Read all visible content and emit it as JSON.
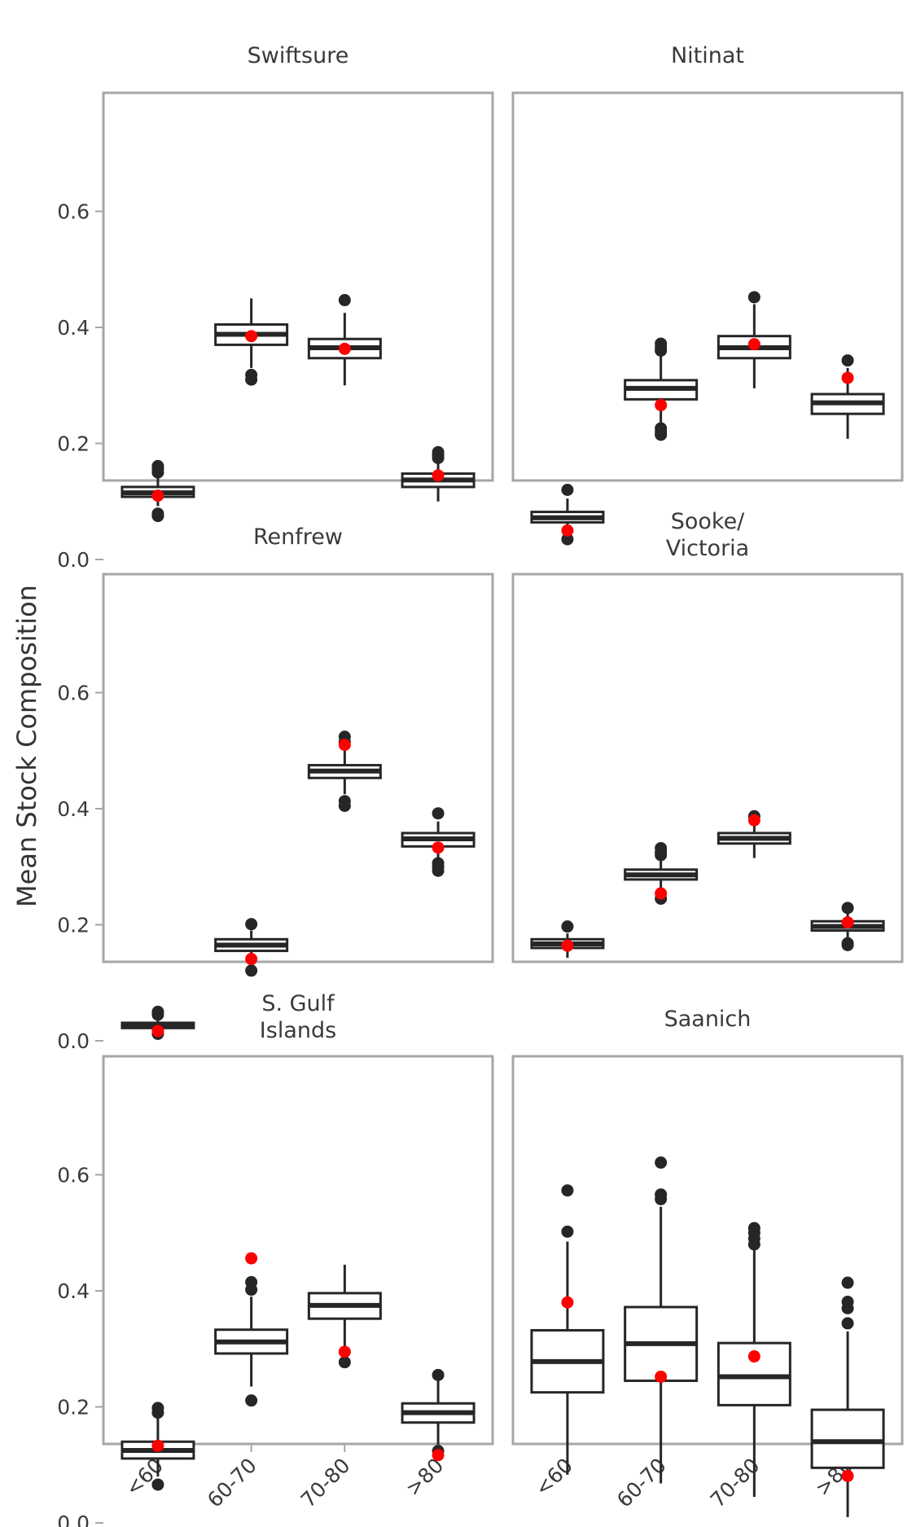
{
  "chart_data": {
    "type": "box",
    "ylabel": "Mean Stock Composition",
    "categories": [
      "<60",
      "60-70",
      "70-80",
      ">80"
    ],
    "yticks": [
      0.0,
      0.2,
      0.4,
      0.6
    ],
    "ytick_labels": [
      "0.0",
      "0.2",
      "0.4",
      "0.6"
    ],
    "ylim": [
      -0.02,
      0.65
    ],
    "colors": {
      "box": "#262626",
      "observed_point": "#ff0000",
      "frame": "#a6a6a6"
    },
    "panels": [
      {
        "title": [
          "Swiftsure"
        ],
        "boxes": [
          {
            "category": "<60",
            "q1": 0.108,
            "median": 0.115,
            "q3": 0.125,
            "whisker_low": 0.092,
            "whisker_high": 0.145,
            "outliers": [
              0.075,
              0.079,
              0.15,
              0.156,
              0.161
            ],
            "observed": 0.11
          },
          {
            "category": "60-70",
            "q1": 0.37,
            "median": 0.388,
            "q3": 0.405,
            "whisker_low": 0.33,
            "whisker_high": 0.45,
            "outliers": [
              0.31,
              0.318
            ],
            "observed": 0.385
          },
          {
            "category": "70-80",
            "q1": 0.347,
            "median": 0.365,
            "q3": 0.38,
            "whisker_low": 0.3,
            "whisker_high": 0.425,
            "outliers": [
              0.447
            ],
            "observed": 0.363
          },
          {
            "category": ">80",
            "q1": 0.125,
            "median": 0.137,
            "q3": 0.148,
            "whisker_low": 0.1,
            "whisker_high": 0.17,
            "outliers": [
              0.175,
              0.18,
              0.185
            ],
            "observed": 0.145
          }
        ]
      },
      {
        "title": [
          "Nitinat"
        ],
        "boxes": [
          {
            "category": "<60",
            "q1": 0.064,
            "median": 0.072,
            "q3": 0.082,
            "whisker_low": 0.045,
            "whisker_high": 0.105,
            "outliers": [
              0.035,
              0.12
            ],
            "observed": 0.05
          },
          {
            "category": "60-70",
            "q1": 0.276,
            "median": 0.295,
            "q3": 0.309,
            "whisker_low": 0.235,
            "whisker_high": 0.35,
            "outliers": [
              0.215,
              0.22,
              0.226,
              0.36,
              0.365,
              0.372
            ],
            "observed": 0.266
          },
          {
            "category": "70-80",
            "q1": 0.347,
            "median": 0.365,
            "q3": 0.385,
            "whisker_low": 0.295,
            "whisker_high": 0.44,
            "outliers": [
              0.452
            ],
            "observed": 0.371
          },
          {
            "category": ">80",
            "q1": 0.251,
            "median": 0.27,
            "q3": 0.285,
            "whisker_low": 0.208,
            "whisker_high": 0.33,
            "outliers": [
              0.343
            ],
            "observed": 0.313
          }
        ]
      },
      {
        "title": [
          "Renfrew"
        ],
        "boxes": [
          {
            "category": "<60",
            "q1": 0.022,
            "median": 0.027,
            "q3": 0.031,
            "whisker_low": 0.015,
            "whisker_high": 0.04,
            "outliers": [
              0.012,
              0.045,
              0.05
            ],
            "observed": 0.017
          },
          {
            "category": "60-70",
            "q1": 0.155,
            "median": 0.165,
            "q3": 0.175,
            "whisker_low": 0.135,
            "whisker_high": 0.19,
            "outliers": [
              0.121,
              0.201
            ],
            "observed": 0.141
          },
          {
            "category": "70-80",
            "q1": 0.453,
            "median": 0.465,
            "q3": 0.475,
            "whisker_low": 0.425,
            "whisker_high": 0.505,
            "outliers": [
              0.405,
              0.413,
              0.515,
              0.524
            ],
            "observed": 0.51
          },
          {
            "category": ">80",
            "q1": 0.335,
            "median": 0.348,
            "q3": 0.358,
            "whisker_low": 0.315,
            "whisker_high": 0.378,
            "outliers": [
              0.293,
              0.3,
              0.306,
              0.392
            ],
            "observed": 0.333
          }
        ]
      },
      {
        "title": [
          "Sooke/",
          "Victoria"
        ],
        "boxes": [
          {
            "category": "<60",
            "q1": 0.16,
            "median": 0.167,
            "q3": 0.175,
            "whisker_low": 0.143,
            "whisker_high": 0.185,
            "outliers": [
              0.197
            ],
            "observed": 0.164
          },
          {
            "category": "60-70",
            "q1": 0.278,
            "median": 0.286,
            "q3": 0.295,
            "whisker_low": 0.26,
            "whisker_high": 0.31,
            "outliers": [
              0.245,
              0.32,
              0.325,
              0.332
            ],
            "observed": 0.254
          },
          {
            "category": "70-80",
            "q1": 0.34,
            "median": 0.349,
            "q3": 0.358,
            "whisker_low": 0.315,
            "whisker_high": 0.38,
            "outliers": [
              0.387
            ],
            "observed": 0.38
          },
          {
            "category": ">80",
            "q1": 0.19,
            "median": 0.197,
            "q3": 0.206,
            "whisker_low": 0.175,
            "whisker_high": 0.22,
            "outliers": [
              0.165,
              0.168,
              0.229
            ],
            "observed": 0.204
          }
        ]
      },
      {
        "title": [
          "S. Gulf",
          "Islands"
        ],
        "boxes": [
          {
            "category": "<60",
            "q1": 0.111,
            "median": 0.125,
            "q3": 0.14,
            "whisker_low": 0.08,
            "whisker_high": 0.18,
            "outliers": [
              0.066,
              0.19,
              0.198
            ],
            "observed": 0.133
          },
          {
            "category": "60-70",
            "q1": 0.292,
            "median": 0.312,
            "q3": 0.333,
            "whisker_low": 0.235,
            "whisker_high": 0.39,
            "outliers": [
              0.211,
              0.402,
              0.415
            ],
            "observed": 0.456
          },
          {
            "category": "70-80",
            "q1": 0.352,
            "median": 0.375,
            "q3": 0.396,
            "whisker_low": 0.29,
            "whisker_high": 0.445,
            "outliers": [
              0.277
            ],
            "observed": 0.295
          },
          {
            "category": ">80",
            "q1": 0.173,
            "median": 0.19,
            "q3": 0.206,
            "whisker_low": 0.135,
            "whisker_high": 0.245,
            "outliers": [
              0.124,
              0.255
            ],
            "observed": 0.117
          }
        ]
      },
      {
        "title": [
          "Saanich"
        ],
        "boxes": [
          {
            "category": "<60",
            "q1": 0.225,
            "median": 0.278,
            "q3": 0.332,
            "whisker_low": 0.083,
            "whisker_high": 0.485,
            "outliers": [
              0.502,
              0.573
            ],
            "observed": 0.38
          },
          {
            "category": "60-70",
            "q1": 0.245,
            "median": 0.309,
            "q3": 0.372,
            "whisker_low": 0.068,
            "whisker_high": 0.545,
            "outliers": [
              0.558,
              0.566,
              0.621
            ],
            "observed": 0.252
          },
          {
            "category": "70-80",
            "q1": 0.203,
            "median": 0.252,
            "q3": 0.31,
            "whisker_low": 0.045,
            "whisker_high": 0.47,
            "outliers": [
              0.48,
              0.49,
              0.5,
              0.508
            ],
            "observed": 0.287
          },
          {
            "category": ">80",
            "q1": 0.095,
            "median": 0.14,
            "q3": 0.195,
            "whisker_low": 0.01,
            "whisker_high": 0.33,
            "outliers": [
              0.344,
              0.37,
              0.381,
              0.414
            ],
            "observed": 0.081
          }
        ]
      }
    ]
  }
}
